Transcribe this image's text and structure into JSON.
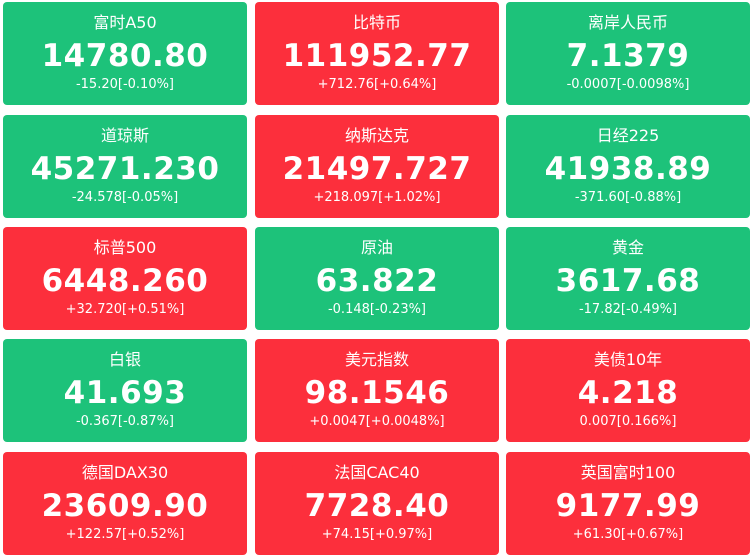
{
  "colors": {
    "up": "#fc2f3c",
    "down": "#1dc27a",
    "text": "#ffffff"
  },
  "tiles": [
    {
      "name": "富时A50",
      "price": "14780.80",
      "change": "-15.20[-0.10%]",
      "direction": "down"
    },
    {
      "name": "比特币",
      "price": "111952.77",
      "change": "+712.76[+0.64%]",
      "direction": "up"
    },
    {
      "name": "离岸人民币",
      "price": "7.1379",
      "change": "-0.0007[-0.0098%]",
      "direction": "down"
    },
    {
      "name": "道琼斯",
      "price": "45271.230",
      "change": "-24.578[-0.05%]",
      "direction": "down"
    },
    {
      "name": "纳斯达克",
      "price": "21497.727",
      "change": "+218.097[+1.02%]",
      "direction": "up"
    },
    {
      "name": "日经225",
      "price": "41938.89",
      "change": "-371.60[-0.88%]",
      "direction": "down"
    },
    {
      "name": "标普500",
      "price": "6448.260",
      "change": "+32.720[+0.51%]",
      "direction": "up"
    },
    {
      "name": "原油",
      "price": "63.822",
      "change": "-0.148[-0.23%]",
      "direction": "down"
    },
    {
      "name": "黄金",
      "price": "3617.68",
      "change": "-17.82[-0.49%]",
      "direction": "down"
    },
    {
      "name": "白银",
      "price": "41.693",
      "change": "-0.367[-0.87%]",
      "direction": "down"
    },
    {
      "name": "美元指数",
      "price": "98.1546",
      "change": "+0.0047[+0.0048%]",
      "direction": "up"
    },
    {
      "name": "美债10年",
      "price": "4.218",
      "change": "0.007[0.166%]",
      "direction": "up"
    },
    {
      "name": "德国DAX30",
      "price": "23609.90",
      "change": "+122.57[+0.52%]",
      "direction": "up"
    },
    {
      "name": "法国CAC40",
      "price": "7728.40",
      "change": "+74.15[+0.97%]",
      "direction": "up"
    },
    {
      "name": "英国富时100",
      "price": "9177.99",
      "change": "+61.30[+0.67%]",
      "direction": "up"
    }
  ]
}
